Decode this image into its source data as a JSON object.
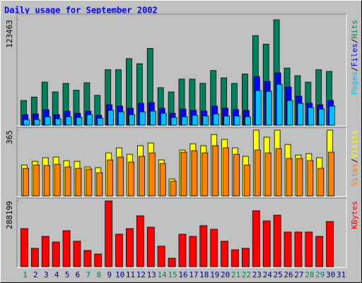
{
  "title": "Daily usage for September 2002",
  "chart_data": [
    {
      "type": "bar",
      "categories": [
        "1",
        "2",
        "3",
        "4",
        "5",
        "6",
        "7",
        "8",
        "9",
        "10",
        "11",
        "12",
        "13",
        "14",
        "15",
        "16",
        "17",
        "18",
        "19",
        "20",
        "21",
        "22",
        "23",
        "24",
        "25",
        "26",
        "27",
        "28",
        "29",
        "30",
        "31"
      ],
      "ylim": [
        0,
        123463
      ],
      "yticks": [
        123463
      ],
      "legend_separator": "/",
      "series": [
        {
          "name": "Hits",
          "color": "#00805c",
          "values": [
            29000,
            33000,
            50500,
            39000,
            49000,
            41000,
            49700,
            35000,
            65000,
            65000,
            78000,
            72000,
            90000,
            44000,
            39000,
            54000,
            54000,
            49000,
            64000,
            55500,
            49000,
            60000,
            105000,
            95000,
            123463,
            67000,
            58000,
            50500,
            65000,
            63000,
            null
          ]
        },
        {
          "name": "Files",
          "color": "#0000ff",
          "values": [
            12400,
            13200,
            18200,
            12400,
            16500,
            14000,
            16500,
            11600,
            24000,
            22400,
            19900,
            25700,
            26500,
            19900,
            14000,
            19000,
            17400,
            16500,
            22400,
            19900,
            18200,
            17400,
            57000,
            51300,
            61300,
            44700,
            34000,
            25700,
            24000,
            29000,
            null
          ]
        },
        {
          "name": "Pages",
          "color": "#00c0ff",
          "values": [
            6600,
            6600,
            9900,
            7500,
            9900,
            9100,
            12400,
            8300,
            17400,
            15700,
            12400,
            15700,
            16500,
            14000,
            9100,
            9900,
            11600,
            10800,
            13200,
            10800,
            10800,
            9900,
            40600,
            39700,
            48000,
            29000,
            25700,
            20700,
            19000,
            22400,
            null
          ]
        }
      ]
    },
    {
      "type": "bar",
      "categories": [
        "1",
        "2",
        "3",
        "4",
        "5",
        "6",
        "7",
        "8",
        "9",
        "10",
        "11",
        "12",
        "13",
        "14",
        "15",
        "16",
        "17",
        "18",
        "19",
        "20",
        "21",
        "22",
        "23",
        "24",
        "25",
        "26",
        "27",
        "28",
        "29",
        "30",
        "31"
      ],
      "ylim": [
        0,
        365
      ],
      "yticks": [
        365
      ],
      "legend_separator": "/",
      "series": [
        {
          "name": "Visits",
          "color": "#ffff00",
          "values": [
            172,
            192,
            212,
            216,
            196,
            192,
            161,
            157,
            239,
            267,
            231,
            279,
            294,
            200,
            94,
            255,
            290,
            279,
            341,
            314,
            267,
            220,
            365,
            326,
            365,
            286,
            227,
            235,
            212,
            365,
            null
          ]
        },
        {
          "name": "Sites",
          "color": "#ff8000",
          "values": [
            153,
            172,
            169,
            176,
            161,
            153,
            149,
            129,
            200,
            216,
            188,
            220,
            239,
            180,
            82,
            243,
            251,
            239,
            279,
            267,
            231,
            172,
            255,
            239,
            263,
            208,
            208,
            196,
            153,
            243,
            null
          ]
        }
      ]
    },
    {
      "type": "bar",
      "categories": [
        "1",
        "2",
        "3",
        "4",
        "5",
        "6",
        "7",
        "8",
        "9",
        "10",
        "11",
        "12",
        "13",
        "14",
        "15",
        "16",
        "17",
        "18",
        "19",
        "20",
        "21",
        "22",
        "23",
        "24",
        "25",
        "26",
        "27",
        "28",
        "29",
        "30",
        "31"
      ],
      "category_colors": [
        "#00805c",
        "#000080",
        "#000080",
        "#000080",
        "#000080",
        "#000080",
        "#00805c",
        "#00805c",
        "#000080",
        "#000080",
        "#000080",
        "#000080",
        "#000080",
        "#00805c",
        "#00805c",
        "#000080",
        "#000080",
        "#000080",
        "#000080",
        "#000080",
        "#00805c",
        "#00805c",
        "#000080",
        "#000080",
        "#000080",
        "#000080",
        "#000080",
        "#00805c",
        "#00805c",
        "#000080",
        "#000080"
      ],
      "ylim": [
        0,
        288199
      ],
      "yticks": [
        288199
      ],
      "series": [
        {
          "name": "KBytes",
          "color": "#ff0000",
          "values": [
            167000,
            80600,
            133000,
            108500,
            158000,
            111600,
            71300,
            55800,
            288199,
            142500,
            167000,
            223000,
            173500,
            90000,
            37200,
            142500,
            133000,
            180000,
            164000,
            111600,
            74400,
            80600,
            245000,
            201000,
            226000,
            152000,
            152000,
            152000,
            133000,
            198000,
            null
          ]
        }
      ]
    }
  ]
}
